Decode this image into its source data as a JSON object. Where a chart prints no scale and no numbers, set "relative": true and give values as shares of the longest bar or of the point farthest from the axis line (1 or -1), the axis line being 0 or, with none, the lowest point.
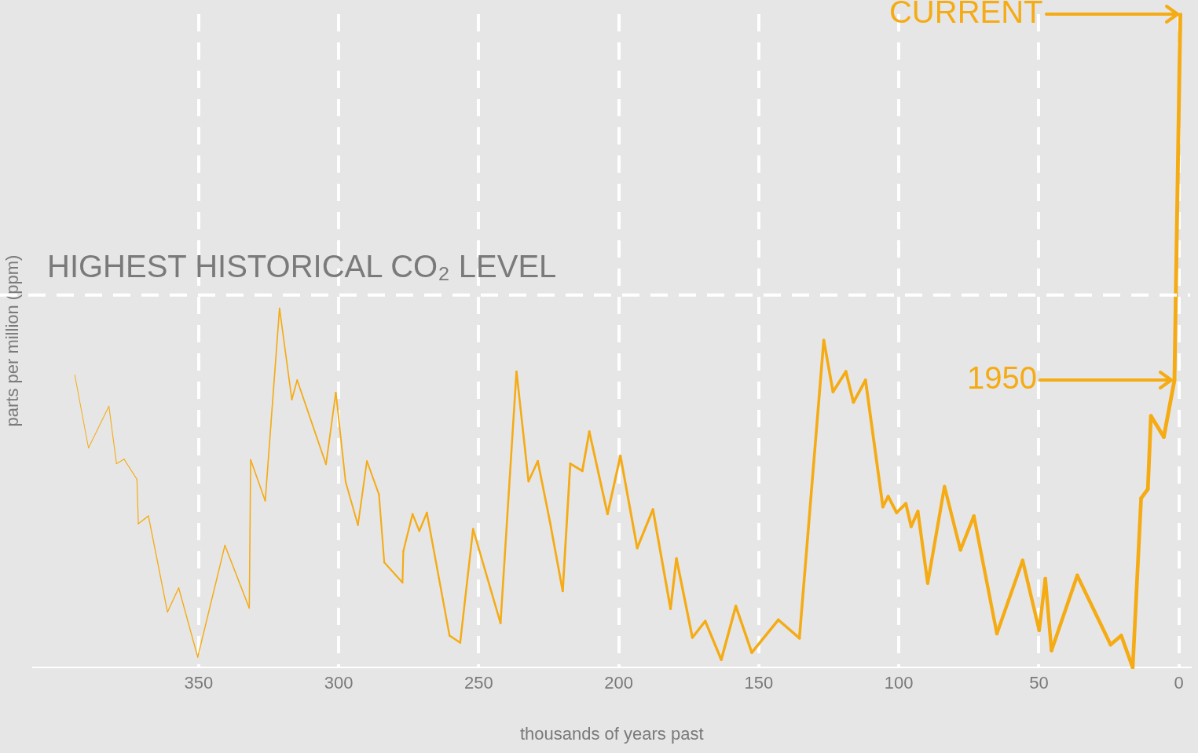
{
  "chart_data": {
    "type": "line",
    "relative": true,
    "xlabel": "thousands of years past",
    "ylabel": "parts per million (ppm)",
    "xlim": [
      409,
      -4
    ],
    "xticks": [
      350,
      300,
      250,
      200,
      150,
      100,
      50,
      0
    ],
    "grid": "x",
    "marker": "none",
    "line_style": "solid",
    "series": [
      {
        "color": "#f5ab14",
        "x": [
          394.2,
          389.3,
          382.0,
          379.3,
          376.6,
          372.0,
          371.5,
          367.9,
          361.1,
          357.1,
          350.3,
          340.6,
          331.9,
          331.4,
          326.2,
          321.1,
          316.7,
          314.8,
          304.5,
          301.0,
          297.5,
          293.1,
          289.9,
          285.6,
          283.7,
          277.2,
          276.9,
          273.6,
          271.2,
          268.5,
          260.4,
          256.6,
          252.0,
          242.2,
          236.5,
          232.2,
          228.9,
          224.6,
          220.0,
          217.3,
          213.0,
          210.5,
          204.0,
          199.4,
          193.4,
          187.8,
          181.5,
          179.4,
          173.7,
          169.1,
          163.4,
          158.2,
          152.5,
          143.0,
          135.5,
          126.8,
          123.5,
          118.9,
          116.2,
          111.9,
          105.7,
          103.8,
          100.8,
          97.5,
          95.6,
          93.2,
          89.7,
          83.7,
          78.0,
          73.2,
          65.0,
          55.8,
          49.9,
          47.7,
          45.5,
          36.3,
          24.4,
          20.6,
          16.5,
          13.5,
          11.1,
          10.0,
          5.4,
          1.6,
          -0.5
        ],
        "values": [
          0.448,
          0.336,
          0.4,
          0.312,
          0.319,
          0.288,
          0.22,
          0.232,
          0.085,
          0.122,
          0.016,
          0.187,
          0.091,
          0.318,
          0.255,
          0.55,
          0.41,
          0.44,
          0.311,
          0.421,
          0.284,
          0.218,
          0.316,
          0.265,
          0.161,
          0.13,
          0.178,
          0.235,
          0.209,
          0.237,
          0.049,
          0.038,
          0.212,
          0.068,
          0.453,
          0.285,
          0.316,
          0.224,
          0.117,
          0.312,
          0.301,
          0.361,
          0.235,
          0.324,
          0.183,
          0.242,
          0.09,
          0.167,
          0.046,
          0.071,
          0.012,
          0.094,
          0.023,
          0.073,
          0.045,
          0.501,
          0.422,
          0.453,
          0.406,
          0.44,
          0.246,
          0.262,
          0.237,
          0.251,
          0.216,
          0.239,
          0.129,
          0.277,
          0.18,
          0.232,
          0.052,
          0.164,
          0.057,
          0.136,
          0.026,
          0.141,
          0.035,
          0.049,
          0,
          0.259,
          0.273,
          0.385,
          0.353,
          0.44,
          1
        ]
      }
    ],
    "ref_lines": [
      {
        "axis": "y",
        "value": 0.57,
        "label": "HIGHEST HISTORICAL CO₂ LEVEL",
        "color": "#ffffff",
        "line_style": "dashed"
      }
    ],
    "annotations": [
      "CURRENT",
      "1950"
    ]
  }
}
